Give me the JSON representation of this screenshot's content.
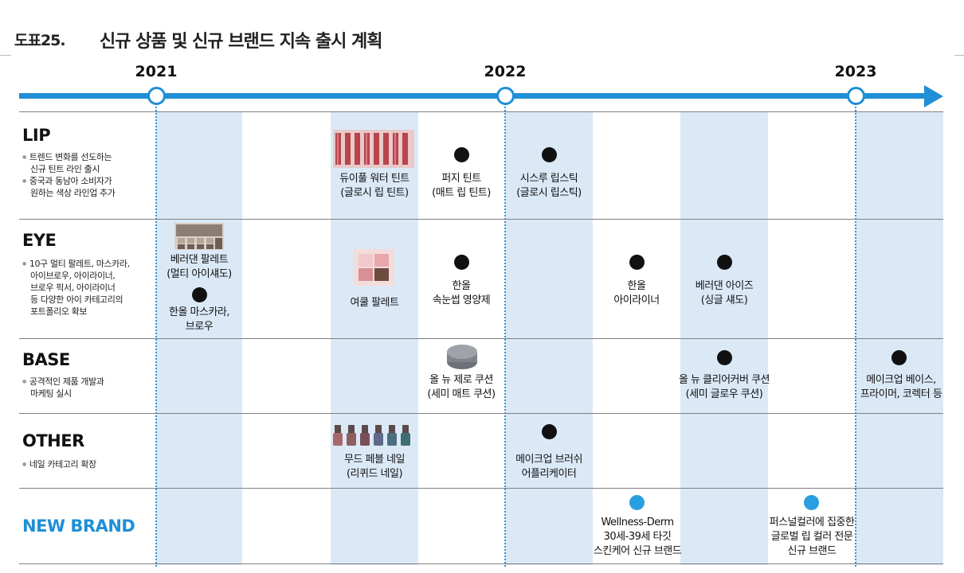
{
  "header": {
    "figure_label": "도표25.",
    "title": "신규 상품 및 신규 브랜드 지속 출시 계획"
  },
  "timeline": {
    "years": [
      "2021",
      "2022",
      "2023"
    ],
    "accent_color": "#1f8fd6",
    "band_color": "#dbe9f7"
  },
  "rows": [
    {
      "category": "LIP",
      "bullets": [
        "트렌드 변화를 선도하는",
        "신규 틴트 라인 출시",
        "중국과 동남아 소비자가",
        "원하는 색상 라인업 추가"
      ]
    },
    {
      "category": "EYE",
      "bullets": [
        "10구 멀티 팔레트, 마스카라,",
        "아이브로우, 아이라이너,",
        "브로우 픽서, 아이라이너",
        "등 다양한 아이 카테고리의",
        "포트폴리오 확보"
      ]
    },
    {
      "category": "BASE",
      "bullets": [
        "공격적인 제품 개발과",
        "마케팅 실시"
      ]
    },
    {
      "category": "OTHER",
      "bullets": [
        "네일 카테고리 확장"
      ]
    },
    {
      "category": "NEW BRAND",
      "bullets": []
    }
  ],
  "items": {
    "lip_1": {
      "line1": "듀이풀 워터 틴트",
      "line2": "(글로시 립 틴트)",
      "icon": "tint-product-photo"
    },
    "lip_2": {
      "line1": "퍼지 틴트",
      "line2": "(매트 립 틴트)",
      "icon": "dot"
    },
    "lip_3": {
      "line1": "시스루 립스틱",
      "line2": "(글로시 립스틱)",
      "icon": "dot"
    },
    "eye_1": {
      "line1": "베러댄 팔레트",
      "line2": "(멀티 아이섀도)",
      "icon": "palette-photo"
    },
    "eye_2": {
      "line1": "한올 마스카라,",
      "line2": "브로우",
      "icon": "dot"
    },
    "eye_3": {
      "line1": "여쿨 팔레트",
      "line2": "",
      "icon": "pink-palette-photo"
    },
    "eye_4": {
      "line1": "한올",
      "line2": "속눈썹 영양제",
      "icon": "dot"
    },
    "eye_5": {
      "line1": "한올",
      "line2": "아이라이너",
      "icon": "dot"
    },
    "eye_6": {
      "line1": "베러댄 아이즈",
      "line2": "(싱글 섀도)",
      "icon": "dot"
    },
    "base_1": {
      "line1": "올 뉴 제로 쿠션",
      "line2": "(세미 매트 쿠션)",
      "icon": "cushion-photo"
    },
    "base_2": {
      "line1": "올 뉴 클리어커버 쿠션",
      "line2": "(세미 글로우 쿠션)",
      "icon": "dot"
    },
    "base_3": {
      "line1": "메이크업 베이스,",
      "line2": "프라이머, 코렉터 등",
      "icon": "dot"
    },
    "other_1": {
      "line1": "무드 페블 네일",
      "line2": "(리퀴드 네일)",
      "icon": "nail-polish-photo"
    },
    "other_2": {
      "line1": "메이크업 브러쉬",
      "line2": "어플리케이터",
      "icon": "dot"
    },
    "brand_1": {
      "line1": "Wellness-Derm",
      "line2": "30세-39세  타깃",
      "line3": "스킨케어 신규 브랜드",
      "icon": "blue-dot"
    },
    "brand_2": {
      "line1": "퍼스널컬러에 집중한",
      "line2": "글로벌 립 컬러 전문",
      "line3": "신규 브랜드",
      "icon": "blue-dot"
    }
  }
}
